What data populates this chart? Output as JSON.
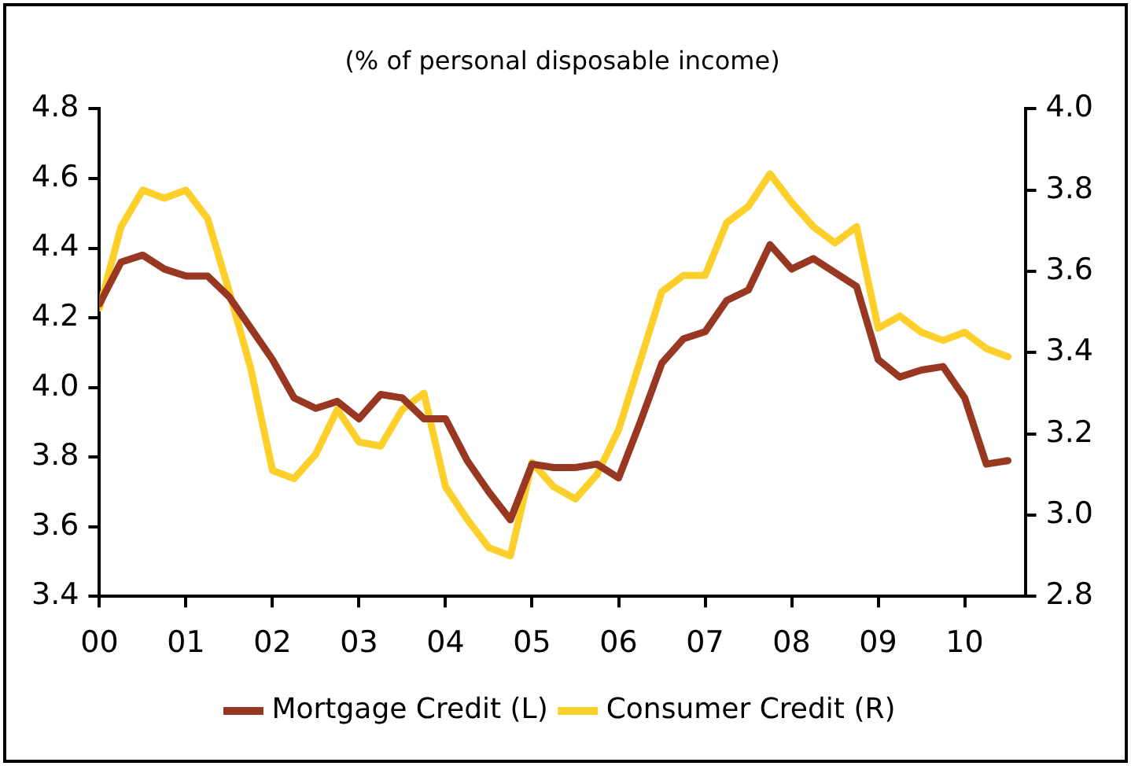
{
  "chart_data": {
    "type": "line",
    "title": "(% of personal disposable income)",
    "x": [
      0,
      0.25,
      0.5,
      0.75,
      1,
      1.25,
      1.5,
      1.75,
      2,
      2.25,
      2.5,
      2.75,
      3,
      3.25,
      3.5,
      3.75,
      4,
      4.25,
      4.5,
      4.75,
      5,
      5.25,
      5.5,
      5.75,
      6,
      6.25,
      6.5,
      6.75,
      7,
      7.25,
      7.5,
      7.75,
      8,
      8.25,
      8.5,
      8.75,
      9,
      9.25,
      9.5,
      9.75,
      10,
      10.25,
      10.5
    ],
    "series": [
      {
        "name": "Mortgage Credit (L)",
        "color": "#993822",
        "axis": "y",
        "values": [
          4.24,
          4.36,
          4.38,
          4.34,
          4.32,
          4.32,
          4.26,
          4.17,
          4.08,
          3.97,
          3.94,
          3.96,
          3.91,
          3.98,
          3.97,
          3.91,
          3.91,
          3.79,
          3.7,
          3.62,
          3.78,
          3.77,
          3.77,
          3.78,
          3.74,
          3.9,
          4.07,
          4.14,
          4.16,
          4.25,
          4.28,
          4.41,
          4.34,
          4.37,
          4.33,
          4.29,
          4.08,
          4.03,
          4.05,
          4.06,
          3.97,
          3.78,
          3.79
        ]
      },
      {
        "name": "Consumer Credit (R)",
        "color": "#fdcf2b",
        "axis": "y2",
        "values": [
          3.51,
          3.71,
          3.8,
          3.78,
          3.8,
          3.73,
          3.55,
          3.36,
          3.11,
          3.09,
          3.15,
          3.26,
          3.18,
          3.17,
          3.26,
          3.3,
          3.07,
          2.99,
          2.92,
          2.9,
          3.13,
          3.07,
          3.04,
          3.1,
          3.21,
          3.38,
          3.55,
          3.59,
          3.59,
          3.72,
          3.76,
          3.84,
          3.77,
          3.71,
          3.67,
          3.71,
          3.46,
          3.49,
          3.45,
          3.43,
          3.45,
          3.41,
          3.39
        ]
      }
    ],
    "xlim": [
      0,
      10.7
    ],
    "xticks": [
      {
        "value": 0,
        "label": "00"
      },
      {
        "value": 1,
        "label": "01"
      },
      {
        "value": 2,
        "label": "02"
      },
      {
        "value": 3,
        "label": "03"
      },
      {
        "value": 4,
        "label": "04"
      },
      {
        "value": 5,
        "label": "05"
      },
      {
        "value": 6,
        "label": "06"
      },
      {
        "value": 7,
        "label": "07"
      },
      {
        "value": 8,
        "label": "08"
      },
      {
        "value": 9,
        "label": "09"
      },
      {
        "value": 10,
        "label": "10"
      }
    ],
    "ylim": [
      3.4,
      4.8
    ],
    "yticks": [
      {
        "value": 3.4,
        "label": "3.4"
      },
      {
        "value": 3.6,
        "label": "3.6"
      },
      {
        "value": 3.8,
        "label": "3.8"
      },
      {
        "value": 4.0,
        "label": "4.0"
      },
      {
        "value": 4.2,
        "label": "4.2"
      },
      {
        "value": 4.4,
        "label": "4.4"
      },
      {
        "value": 4.6,
        "label": "4.6"
      },
      {
        "value": 4.8,
        "label": "4.8"
      }
    ],
    "y2lim": [
      2.8,
      4.0
    ],
    "y2ticks": [
      {
        "value": 2.8,
        "label": "2.8"
      },
      {
        "value": 3.0,
        "label": "3.0"
      },
      {
        "value": 3.2,
        "label": "3.2"
      },
      {
        "value": 3.4,
        "label": "3.4"
      },
      {
        "value": 3.6,
        "label": "3.6"
      },
      {
        "value": 3.8,
        "label": "3.8"
      },
      {
        "value": 4.0,
        "label": "4.0"
      }
    ],
    "grid": false,
    "legend": "bottom",
    "marker": "none",
    "line_style": "solid"
  }
}
